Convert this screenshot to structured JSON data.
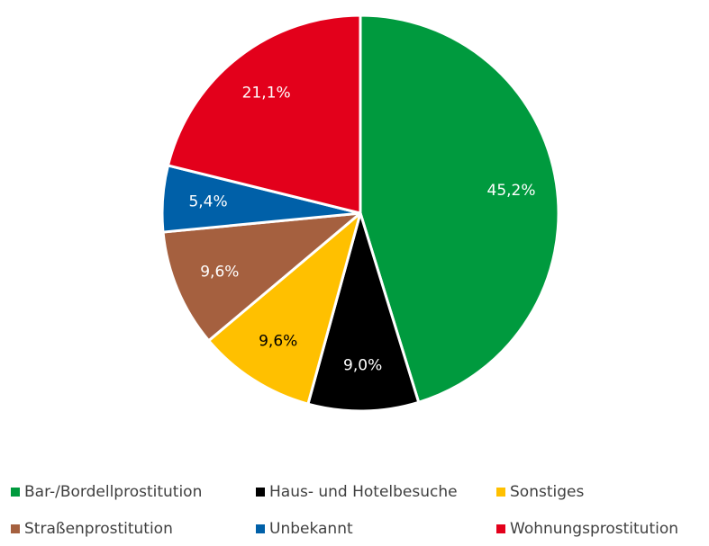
{
  "chart_data": {
    "type": "pie",
    "categories": [
      "Bar-/Bordellprostitution",
      "Haus- und Hotelbesuche",
      "Sonstiges",
      "Straßenprostitution",
      "Unbekannt",
      "Wohnungsprostitution"
    ],
    "values": [
      45.2,
      9.0,
      9.6,
      9.6,
      5.4,
      21.1
    ],
    "value_labels": [
      "45,2%",
      "9,0%",
      "9,6%",
      "9,6%",
      "5,4%",
      "21,1%"
    ],
    "colors": [
      "#009a3e",
      "#000000",
      "#ffc000",
      "#a5603f",
      "#0060a8",
      "#e3001b"
    ],
    "legend": "bottom"
  }
}
